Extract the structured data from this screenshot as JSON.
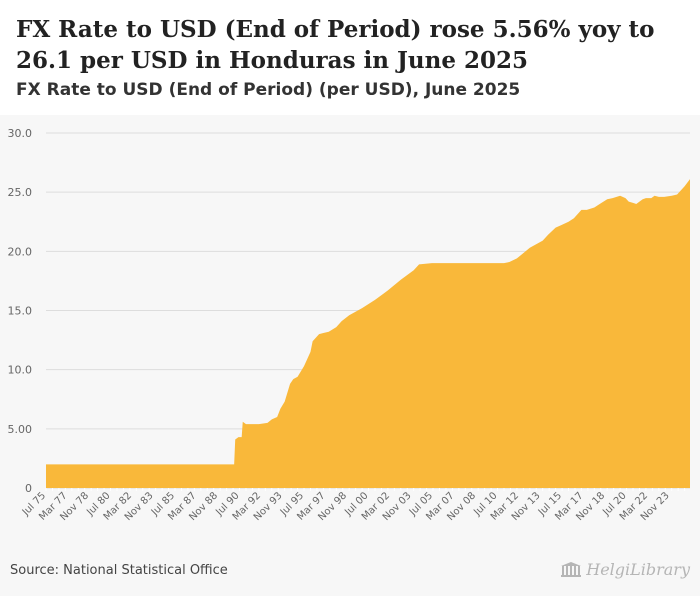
{
  "header": {
    "title": "FX Rate to USD (End of Period) rose 5.56% yoy to 26.1 per USD in Honduras in June 2025",
    "subtitle": "FX Rate to USD (End of Period) (per USD), June 2025"
  },
  "footer": {
    "source": "Source: National Statistical Office",
    "brand": "HelgiLibrary",
    "logo_icon": "library-columns-icon"
  },
  "colors": {
    "area": "#f9b83a",
    "grid": "#dddddd",
    "text": "#666666"
  },
  "chart_data": {
    "type": "area",
    "title": "FX Rate to USD (End of Period) (per USD), June 2025",
    "xlabel": "",
    "ylabel": "",
    "ylim": [
      0,
      30
    ],
    "x_range": [
      "Jul 75",
      "Jun 25"
    ],
    "grid": true,
    "legend": "none",
    "y_ticks": [
      "0",
      "5.00",
      "10.0",
      "15.0",
      "20.0",
      "25.0",
      "30.0"
    ],
    "x_ticks": [
      "Jul 75",
      "Mar 77",
      "Nov 78",
      "Jul 80",
      "Mar 82",
      "Nov 83",
      "Jul 85",
      "Mar 87",
      "Nov 88",
      "Jul 90",
      "Mar 92",
      "Nov 93",
      "Jul 95",
      "Mar 97",
      "Nov 98",
      "Jul 00",
      "Mar 02",
      "Nov 03",
      "Jul 05",
      "Mar 07",
      "Nov 08",
      "Jul 10",
      "Mar 12",
      "Nov 13",
      "Jul 15",
      "Mar 17",
      "Nov 18",
      "Jul 20",
      "Mar 22",
      "Nov 23"
    ],
    "series": [
      {
        "values": [
          [
            "1975-07",
            2.0
          ],
          [
            "1990-02",
            2.0
          ],
          [
            "1990-03",
            4.1
          ],
          [
            "1990-06",
            4.3
          ],
          [
            "1990-09",
            4.3
          ],
          [
            "1990-10",
            5.6
          ],
          [
            "1991-01",
            5.4
          ],
          [
            "1991-06",
            5.4
          ],
          [
            "1992-01",
            5.4
          ],
          [
            "1992-09",
            5.5
          ],
          [
            "1993-01",
            5.8
          ],
          [
            "1993-06",
            6.0
          ],
          [
            "1993-09",
            6.7
          ],
          [
            "1994-01",
            7.3
          ],
          [
            "1994-06",
            8.8
          ],
          [
            "1994-09",
            9.2
          ],
          [
            "1995-01",
            9.4
          ],
          [
            "1995-07",
            10.3
          ],
          [
            "1996-01",
            11.5
          ],
          [
            "1996-03",
            12.4
          ],
          [
            "1996-09",
            13.0
          ],
          [
            "1997-01",
            13.1
          ],
          [
            "1997-06",
            13.2
          ],
          [
            "1998-01",
            13.6
          ],
          [
            "1998-06",
            14.1
          ],
          [
            "1999-01",
            14.6
          ],
          [
            "2000-01",
            15.2
          ],
          [
            "2001-01",
            15.9
          ],
          [
            "2002-01",
            16.7
          ],
          [
            "2003-01",
            17.6
          ],
          [
            "2004-01",
            18.4
          ],
          [
            "2004-06",
            18.9
          ],
          [
            "2005-06",
            19.0
          ],
          [
            "2008-06",
            19.0
          ],
          [
            "2010-06",
            19.0
          ],
          [
            "2011-01",
            19.0
          ],
          [
            "2011-06",
            19.1
          ],
          [
            "2012-01",
            19.4
          ],
          [
            "2013-01",
            20.3
          ],
          [
            "2014-01",
            20.9
          ],
          [
            "2014-06",
            21.4
          ],
          [
            "2015-01",
            22.0
          ],
          [
            "2015-06",
            22.2
          ],
          [
            "2016-01",
            22.5
          ],
          [
            "2016-06",
            22.8
          ],
          [
            "2017-01",
            23.5
          ],
          [
            "2017-06",
            23.5
          ],
          [
            "2018-01",
            23.7
          ],
          [
            "2018-06",
            24.0
          ],
          [
            "2019-01",
            24.4
          ],
          [
            "2019-06",
            24.5
          ],
          [
            "2020-01",
            24.7
          ],
          [
            "2020-06",
            24.5
          ],
          [
            "2020-09",
            24.2
          ],
          [
            "2021-01",
            24.1
          ],
          [
            "2021-04",
            24.0
          ],
          [
            "2021-07",
            24.2
          ],
          [
            "2021-10",
            24.4
          ],
          [
            "2022-01",
            24.5
          ],
          [
            "2022-06",
            24.5
          ],
          [
            "2022-09",
            24.7
          ],
          [
            "2023-01",
            24.6
          ],
          [
            "2023-06",
            24.6
          ],
          [
            "2024-01",
            24.7
          ],
          [
            "2024-06",
            24.8
          ],
          [
            "2025-01",
            25.5
          ],
          [
            "2025-06",
            26.1
          ]
        ]
      }
    ]
  }
}
